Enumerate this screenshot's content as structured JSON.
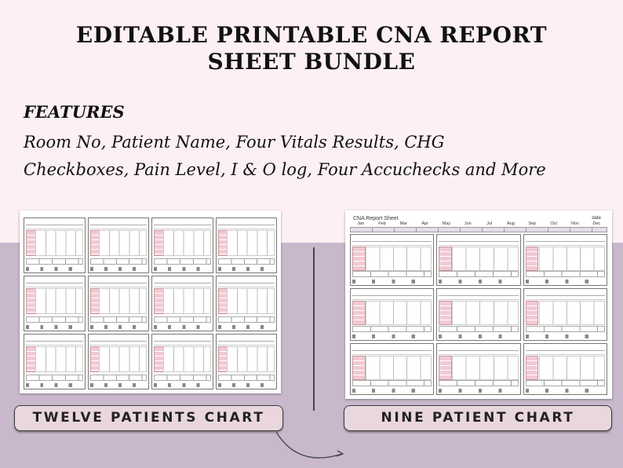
{
  "title_line1": "EDITABLE PRINTABLE CNA REPORT",
  "title_line2": "SHEET BUNDLE",
  "features_heading": "FEATURES",
  "features_line1": "Room No, Patient Name, Four Vitals Results, CHG",
  "features_line2": "Checkboxes, Pain Level, I & O log, Four Accuchecks and More",
  "sheet_nine": {
    "title": "CNA Report Sheet",
    "date_label": "date",
    "months": [
      "Jan",
      "Feb",
      "Mar",
      "Apr",
      "May",
      "Jun",
      "Jul",
      "Aug",
      "Sep",
      "Oct",
      "Nov",
      "Dec"
    ]
  },
  "label_twelve": "TWELVE PATIENTS CHART",
  "label_nine": "NINE PATIENT CHART",
  "colors": {
    "top_bg": "#fdf0f3",
    "bottom_bg": "#c9b8cc",
    "label_bg": "#ead7de",
    "vitals_pink": "#f1c9d4"
  }
}
